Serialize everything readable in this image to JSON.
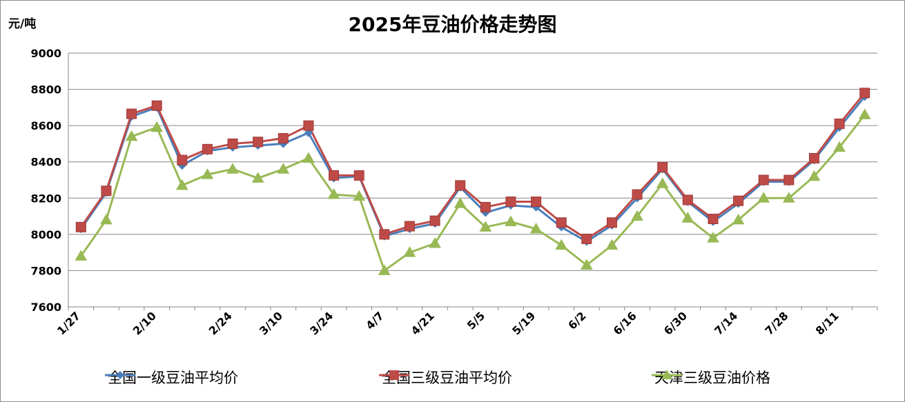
{
  "chart_data": {
    "type": "line",
    "title": "2025年豆油价格走势图",
    "ylabel": "元/吨",
    "xlabel": "",
    "ylim": [
      7600,
      9000
    ],
    "yticks": [
      7600,
      7800,
      8000,
      8200,
      8400,
      8600,
      8800,
      9000
    ],
    "grid": true,
    "legend_position": "bottom",
    "x_tick_labels": [
      "1/27",
      "2/10",
      "2/24",
      "3/10",
      "3/24",
      "4/7",
      "4/21",
      "5/5",
      "5/19",
      "6/2",
      "6/16",
      "6/30",
      "7/14",
      "7/28",
      "8/11"
    ],
    "x": [
      "1/27",
      "2/3",
      "2/6",
      "2/10",
      "2/17",
      "2/20",
      "2/24",
      "3/3",
      "3/10",
      "3/17",
      "3/24",
      "3/31",
      "4/7",
      "4/14",
      "4/21",
      "4/28",
      "5/5",
      "5/12",
      "5/19",
      "5/26",
      "6/2",
      "6/9",
      "6/16",
      "6/23",
      "6/30",
      "7/7",
      "7/14",
      "7/21",
      "7/28",
      "8/4",
      "8/11",
      "8/18"
    ],
    "series": [
      {
        "name": "全国一级豆油平均价",
        "color": "#4a7ebb",
        "marker": "diamond",
        "values": [
          8030,
          8230,
          8650,
          8700,
          8380,
          8460,
          8480,
          8490,
          8500,
          8560,
          8310,
          8320,
          7990,
          8030,
          8060,
          8260,
          8120,
          8160,
          8150,
          8040,
          7960,
          8050,
          8200,
          8360,
          8180,
          8070,
          8170,
          8290,
          8290,
          8410,
          8590,
          8760
        ]
      },
      {
        "name": "全国三级豆油平均价",
        "color": "#be4b48",
        "marker": "square",
        "values": [
          8040,
          8240,
          8665,
          8710,
          8410,
          8470,
          8500,
          8510,
          8530,
          8600,
          8325,
          8325,
          8000,
          8045,
          8075,
          8270,
          8150,
          8180,
          8180,
          8065,
          7975,
          8065,
          8220,
          8370,
          8190,
          8085,
          8185,
          8300,
          8300,
          8420,
          8610,
          8780
        ]
      },
      {
        "name": "天津三级豆油价格",
        "color": "#98b954",
        "marker": "triangle",
        "values": [
          7880,
          8080,
          8540,
          8590,
          8270,
          8330,
          8360,
          8310,
          8360,
          8420,
          8220,
          8210,
          7800,
          7900,
          7950,
          8170,
          8040,
          8070,
          8030,
          7940,
          7830,
          7940,
          8100,
          8280,
          8090,
          7980,
          8080,
          8200,
          8200,
          8320,
          8480,
          8660
        ]
      }
    ]
  }
}
